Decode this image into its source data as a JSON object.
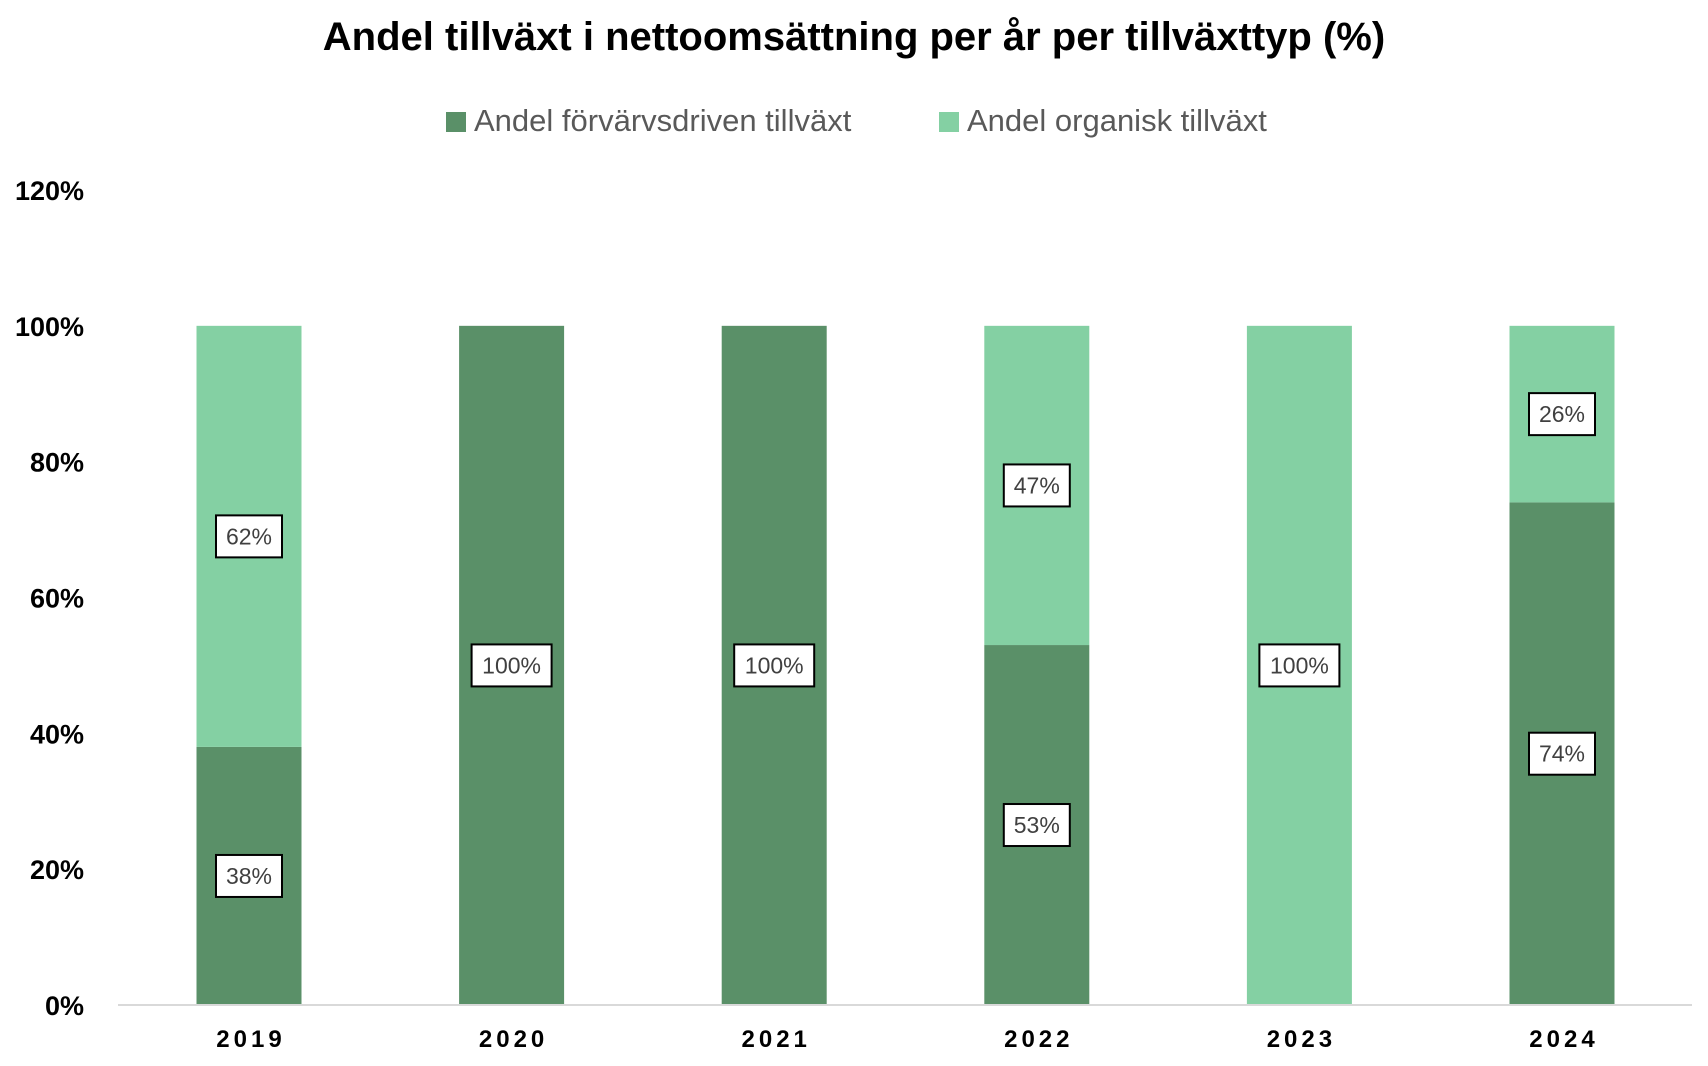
{
  "chart_data": {
    "type": "bar",
    "stacked": true,
    "title": "Andel tillväxt i nettoomsättning per år per tillväxttyp (%)",
    "categories": [
      "2019",
      "2020",
      "2021",
      "2022",
      "2023",
      "2024"
    ],
    "series": [
      {
        "name": "Andel förvärvsdriven tillväxt",
        "color": "#5a9068",
        "values": [
          38,
          100,
          100,
          53,
          0,
          74
        ],
        "labels": [
          "38%",
          "100%",
          "100%",
          "53%",
          null,
          "74%"
        ]
      },
      {
        "name": "Andel organisk tillväxt",
        "color": "#84d0a3",
        "values": [
          62,
          0,
          0,
          47,
          100,
          26
        ],
        "labels": [
          "62%",
          null,
          null,
          "47%",
          "100%",
          "26%"
        ]
      }
    ],
    "yticks": [
      "0%",
      "20%",
      "40%",
      "60%",
      "80%",
      "100%",
      "120%"
    ],
    "ylim": [
      0,
      120
    ],
    "legend_position": "top",
    "grid": false
  }
}
